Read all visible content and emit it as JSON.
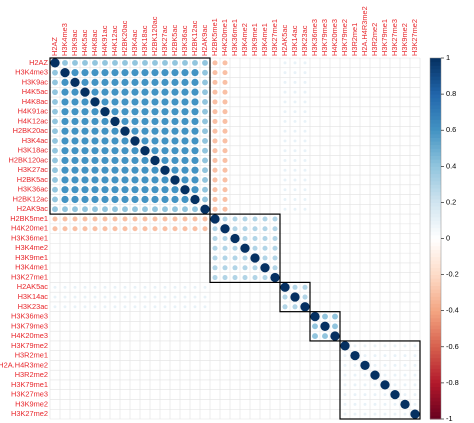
{
  "chart_data": {
    "type": "corrplot",
    "labels": [
      "H2AZ",
      "H3K4me3",
      "H3K9ac",
      "H4K5ac",
      "H4K8ac",
      "H4K91ac",
      "H4K12ac",
      "H2BK20ac",
      "H3K4ac",
      "H3K18ac",
      "H2BK120ac",
      "H3K27ac",
      "H2BK5ac",
      "H3K36ac",
      "H2BK12ac",
      "H2AK9ac",
      "H2BK5me1",
      "H4K20me1",
      "H3K36me1",
      "H3K4me2",
      "H3K9me1",
      "H3K4me1",
      "H3K27me1",
      "H2AK5ac",
      "H3K14ac",
      "H3K23ac",
      "H3K36me3",
      "H3K79me3",
      "H4K20me3",
      "H3K79me2",
      "H3R2me1",
      "H2A.H4R3me2",
      "H3R2me2",
      "H3K79me1",
      "H3K27me3",
      "H3K9me2",
      "H3K27me2"
    ],
    "matrix": [
      [
        1,
        0.4,
        0.4,
        0.4,
        0.4,
        0.4,
        0.4,
        0.4,
        0.4,
        0.4,
        0.4,
        0.4,
        0.4,
        0.4,
        0.4,
        0.4,
        -0.3,
        -0.3,
        0,
        0,
        0,
        0,
        0,
        0.1,
        0.1,
        0.1,
        0,
        0,
        0,
        0,
        0,
        0,
        0,
        0,
        0,
        0,
        0
      ],
      [
        0.4,
        1,
        0.6,
        0.6,
        0.6,
        0.6,
        0.6,
        0.6,
        0.6,
        0.6,
        0.6,
        0.6,
        0.6,
        0.6,
        0.6,
        0.4,
        -0.3,
        -0.3,
        0,
        0,
        0,
        0,
        0,
        0.1,
        0.1,
        0.1,
        0,
        0,
        0,
        0,
        0,
        0,
        0,
        0,
        0,
        0,
        0
      ],
      [
        0.4,
        0.6,
        1,
        0.6,
        0.6,
        0.6,
        0.6,
        0.6,
        0.6,
        0.6,
        0.6,
        0.6,
        0.6,
        0.6,
        0.6,
        0.4,
        -0.3,
        -0.3,
        0,
        0,
        0,
        0,
        0,
        0.1,
        0.1,
        0.1,
        0,
        0,
        0,
        0,
        0,
        0,
        0,
        0,
        0,
        0,
        0
      ],
      [
        0.4,
        0.6,
        0.6,
        1,
        0.6,
        0.6,
        0.6,
        0.6,
        0.6,
        0.6,
        0.6,
        0.6,
        0.6,
        0.6,
        0.6,
        0.4,
        -0.3,
        -0.3,
        0,
        0,
        0,
        0,
        0,
        0.1,
        0.1,
        0.1,
        0,
        0,
        0,
        0,
        0,
        0,
        0,
        0,
        0,
        0,
        0
      ],
      [
        0.4,
        0.6,
        0.6,
        0.6,
        1,
        0.6,
        0.6,
        0.6,
        0.6,
        0.6,
        0.6,
        0.6,
        0.6,
        0.6,
        0.6,
        0.4,
        -0.3,
        -0.3,
        0,
        0,
        0,
        0,
        0,
        0.1,
        0.1,
        0.1,
        0,
        0,
        0,
        0,
        0,
        0,
        0,
        0,
        0,
        0,
        0
      ],
      [
        0.4,
        0.6,
        0.6,
        0.6,
        0.6,
        1,
        0.6,
        0.6,
        0.6,
        0.6,
        0.6,
        0.6,
        0.6,
        0.6,
        0.6,
        0.4,
        -0.3,
        -0.3,
        0,
        0,
        0,
        0,
        0,
        0.1,
        0.1,
        0.1,
        0,
        0,
        0,
        0,
        0,
        0,
        0,
        0,
        0,
        0,
        0
      ],
      [
        0.4,
        0.6,
        0.6,
        0.6,
        0.6,
        0.6,
        1,
        0.6,
        0.6,
        0.6,
        0.6,
        0.6,
        0.6,
        0.6,
        0.6,
        0.4,
        -0.3,
        -0.3,
        0,
        0,
        0,
        0,
        0,
        0.1,
        0.1,
        0.1,
        0,
        0,
        0,
        0,
        0,
        0,
        0,
        0,
        0,
        0,
        0
      ],
      [
        0.4,
        0.6,
        0.6,
        0.6,
        0.6,
        0.6,
        0.6,
        1,
        0.6,
        0.6,
        0.6,
        0.6,
        0.6,
        0.6,
        0.6,
        0.4,
        -0.3,
        -0.3,
        0,
        0,
        0,
        0,
        0,
        0.1,
        0.1,
        0.1,
        0,
        0,
        0,
        0,
        0,
        0,
        0,
        0,
        0,
        0,
        0
      ],
      [
        0.4,
        0.6,
        0.6,
        0.6,
        0.6,
        0.6,
        0.6,
        0.6,
        1,
        0.6,
        0.6,
        0.6,
        0.6,
        0.6,
        0.6,
        0.4,
        -0.3,
        -0.3,
        0,
        0,
        0,
        0,
        0,
        0.1,
        0.1,
        0.1,
        0,
        0,
        0,
        0,
        0,
        0,
        0,
        0,
        0,
        0,
        0
      ],
      [
        0.4,
        0.6,
        0.6,
        0.6,
        0.6,
        0.6,
        0.6,
        0.6,
        0.6,
        1,
        0.6,
        0.6,
        0.6,
        0.6,
        0.6,
        0.4,
        -0.3,
        -0.3,
        0,
        0,
        0,
        0,
        0,
        0.1,
        0.1,
        0.1,
        0,
        0,
        0,
        0,
        0,
        0,
        0,
        0,
        0,
        0,
        0
      ],
      [
        0.4,
        0.6,
        0.6,
        0.6,
        0.6,
        0.6,
        0.6,
        0.6,
        0.6,
        0.6,
        1,
        0.6,
        0.6,
        0.6,
        0.6,
        0.4,
        -0.3,
        -0.3,
        0,
        0,
        0,
        0,
        0,
        0.1,
        0.1,
        0.1,
        0,
        0,
        0,
        0,
        0,
        0,
        0,
        0,
        0,
        0,
        0
      ],
      [
        0.4,
        0.6,
        0.6,
        0.6,
        0.6,
        0.6,
        0.6,
        0.6,
        0.6,
        0.6,
        0.6,
        1,
        0.6,
        0.6,
        0.6,
        0.4,
        -0.3,
        -0.3,
        0,
        0,
        0,
        0,
        0,
        0.1,
        0.1,
        0.1,
        0,
        0,
        0,
        0,
        0,
        0,
        0,
        0,
        0,
        0,
        0
      ],
      [
        0.4,
        0.6,
        0.6,
        0.6,
        0.6,
        0.6,
        0.6,
        0.6,
        0.6,
        0.6,
        0.6,
        0.6,
        1,
        0.6,
        0.6,
        0.4,
        -0.3,
        -0.3,
        0,
        0,
        0,
        0,
        0,
        0.1,
        0.1,
        0.1,
        0,
        0,
        0,
        0,
        0,
        0,
        0,
        0,
        0,
        0,
        0
      ],
      [
        0.4,
        0.6,
        0.6,
        0.6,
        0.6,
        0.6,
        0.6,
        0.6,
        0.6,
        0.6,
        0.6,
        0.6,
        0.6,
        1,
        0.6,
        0.4,
        -0.3,
        -0.3,
        0,
        0,
        0,
        0,
        0,
        0.1,
        0.1,
        0.1,
        0,
        0,
        0,
        0,
        0,
        0,
        0,
        0,
        0,
        0,
        0
      ],
      [
        0.4,
        0.6,
        0.6,
        0.6,
        0.6,
        0.6,
        0.6,
        0.6,
        0.6,
        0.6,
        0.6,
        0.6,
        0.6,
        0.6,
        1,
        0.4,
        -0.3,
        -0.3,
        0,
        0,
        0,
        0,
        0,
        0.1,
        0.1,
        0.1,
        0,
        0,
        0,
        0,
        0,
        0,
        0,
        0,
        0,
        0,
        0
      ],
      [
        0.4,
        0.4,
        0.4,
        0.4,
        0.4,
        0.4,
        0.4,
        0.4,
        0.4,
        0.4,
        0.4,
        0.4,
        0.4,
        0.4,
        0.4,
        1,
        -0.3,
        -0.3,
        0,
        0,
        0,
        0,
        0,
        0.1,
        0.1,
        0.1,
        0,
        0,
        0,
        0,
        0,
        0,
        0,
        0,
        0,
        0,
        0
      ],
      [
        -0.3,
        -0.3,
        -0.3,
        -0.3,
        -0.3,
        -0.3,
        -0.3,
        -0.3,
        -0.3,
        -0.3,
        -0.3,
        -0.3,
        -0.3,
        -0.3,
        -0.3,
        -0.3,
        1,
        0.3,
        0.3,
        0.3,
        0.3,
        0.3,
        0.3,
        0,
        0,
        0,
        0,
        0,
        0,
        0,
        0,
        0,
        0,
        0,
        0,
        0,
        0
      ],
      [
        -0.3,
        -0.3,
        -0.3,
        -0.3,
        -0.3,
        -0.3,
        -0.3,
        -0.3,
        -0.3,
        -0.3,
        -0.3,
        -0.3,
        -0.3,
        -0.3,
        -0.3,
        -0.3,
        0.3,
        1,
        0.3,
        0.3,
        0.3,
        0.3,
        0.3,
        0,
        0,
        0,
        0,
        0,
        0,
        0,
        0,
        0,
        0,
        0,
        0,
        0,
        0
      ],
      [
        0,
        0,
        0,
        0,
        0,
        0,
        0,
        0,
        0,
        0,
        0,
        0,
        0,
        0,
        0,
        0,
        0.3,
        0.3,
        1,
        0.3,
        0.3,
        0.3,
        0.3,
        0,
        0,
        0,
        0,
        0,
        0,
        0,
        0,
        0,
        0,
        0,
        0,
        0,
        0
      ],
      [
        0,
        0,
        0,
        0,
        0,
        0,
        0,
        0,
        0,
        0,
        0,
        0,
        0,
        0,
        0,
        0,
        0.3,
        0.3,
        0.3,
        1,
        0.3,
        0.3,
        0.3,
        0,
        0,
        0,
        0,
        0,
        0,
        0,
        0,
        0,
        0,
        0,
        0,
        0,
        0
      ],
      [
        0,
        0,
        0,
        0,
        0,
        0,
        0,
        0,
        0,
        0,
        0,
        0,
        0,
        0,
        0,
        0,
        0.3,
        0.3,
        0.3,
        0.3,
        1,
        0.3,
        0.3,
        0,
        0,
        0,
        0,
        0,
        0,
        0,
        0,
        0,
        0,
        0,
        0,
        0,
        0
      ],
      [
        0,
        0,
        0,
        0,
        0,
        0,
        0,
        0,
        0,
        0,
        0,
        0,
        0,
        0,
        0,
        0,
        0.3,
        0.3,
        0.3,
        0.3,
        0.3,
        1,
        0.3,
        0,
        0,
        0,
        0,
        0,
        0,
        0,
        0,
        0,
        0,
        0,
        0,
        0,
        0
      ],
      [
        0,
        0,
        0,
        0,
        0,
        0,
        0,
        0,
        0,
        0,
        0,
        0,
        0,
        0,
        0,
        0,
        0.3,
        0.3,
        0.3,
        0.3,
        0.3,
        0.3,
        1,
        0,
        0,
        0,
        0,
        0,
        0,
        0,
        0,
        0,
        0,
        0,
        0,
        0,
        0
      ],
      [
        0.1,
        0.1,
        0.1,
        0.1,
        0.1,
        0.1,
        0.1,
        0.1,
        0.1,
        0.1,
        0.1,
        0.1,
        0.1,
        0.1,
        0.1,
        0.1,
        0,
        0,
        0,
        0,
        0,
        0,
        0,
        1,
        0.3,
        0.3,
        0,
        0,
        0,
        0,
        0,
        0,
        0,
        0,
        0,
        0,
        0
      ],
      [
        0.1,
        0.1,
        0.1,
        0.1,
        0.1,
        0.1,
        0.1,
        0.1,
        0.1,
        0.1,
        0.1,
        0.1,
        0.1,
        0.1,
        0.1,
        0.1,
        0,
        0,
        0,
        0,
        0,
        0,
        0,
        0.3,
        1,
        0.3,
        0,
        0,
        0,
        0,
        0,
        0,
        0,
        0,
        0,
        0,
        0
      ],
      [
        0.1,
        0.1,
        0.1,
        0.1,
        0.1,
        0.1,
        0.1,
        0.1,
        0.1,
        0.1,
        0.1,
        0.1,
        0.1,
        0.1,
        0.1,
        0.1,
        0,
        0,
        0,
        0,
        0,
        0,
        0,
        0.3,
        0.3,
        1,
        0,
        0,
        0,
        0,
        0,
        0,
        0,
        0,
        0,
        0,
        0
      ],
      [
        0,
        0,
        0,
        0,
        0,
        0,
        0,
        0,
        0,
        0,
        0,
        0,
        0,
        0,
        0,
        0,
        0,
        0,
        0,
        0,
        0,
        0,
        0,
        0,
        0,
        0,
        1,
        0.4,
        0.4,
        0,
        0,
        0,
        0,
        0,
        0,
        0,
        0
      ],
      [
        0,
        0,
        0,
        0,
        0,
        0,
        0,
        0,
        0,
        0,
        0,
        0,
        0,
        0,
        0,
        0,
        0,
        0,
        0,
        0,
        0,
        0,
        0,
        0,
        0,
        0,
        0.4,
        1,
        0.4,
        0,
        0,
        0,
        0,
        0,
        0,
        0,
        0
      ],
      [
        0,
        0,
        0,
        0,
        0,
        0,
        0,
        0,
        0,
        0,
        0,
        0,
        0,
        0,
        0,
        0,
        0,
        0,
        0,
        0,
        0,
        0,
        0,
        0,
        0,
        0,
        0.4,
        0.4,
        1,
        0,
        0,
        0,
        0,
        0,
        0,
        0,
        0
      ],
      [
        0,
        0,
        0,
        0,
        0,
        0,
        0,
        0,
        0,
        0,
        0,
        0,
        0,
        0,
        0,
        0,
        0,
        0,
        0,
        0,
        0,
        0,
        0,
        0,
        0,
        0,
        0,
        0,
        0,
        1,
        0.1,
        0.1,
        0.1,
        0.1,
        0.1,
        0.1,
        0.1
      ],
      [
        0,
        0,
        0,
        0,
        0,
        0,
        0,
        0,
        0,
        0,
        0,
        0,
        0,
        0,
        0,
        0,
        0,
        0,
        0,
        0,
        0,
        0,
        0,
        0,
        0,
        0,
        0,
        0,
        0,
        0.1,
        1,
        0.1,
        0.1,
        0.1,
        0.1,
        0.1,
        0.1
      ],
      [
        0,
        0,
        0,
        0,
        0,
        0,
        0,
        0,
        0,
        0,
        0,
        0,
        0,
        0,
        0,
        0,
        0,
        0,
        0,
        0,
        0,
        0,
        0,
        0,
        0,
        0,
        0,
        0,
        0,
        0.1,
        0.1,
        1,
        0.1,
        0.1,
        0.1,
        0.1,
        0.1
      ],
      [
        0,
        0,
        0,
        0,
        0,
        0,
        0,
        0,
        0,
        0,
        0,
        0,
        0,
        0,
        0,
        0,
        0,
        0,
        0,
        0,
        0,
        0,
        0,
        0,
        0,
        0,
        0,
        0,
        0,
        0.1,
        0.1,
        0.1,
        1,
        0.1,
        0.1,
        0.1,
        0.1
      ],
      [
        0,
        0,
        0,
        0,
        0,
        0,
        0,
        0,
        0,
        0,
        0,
        0,
        0,
        0,
        0,
        0,
        0,
        0,
        0,
        0,
        0,
        0,
        0,
        0,
        0,
        0,
        0,
        0,
        0,
        0.1,
        0.1,
        0.1,
        0.1,
        1,
        0.1,
        0.1,
        0.1
      ],
      [
        0,
        0,
        0,
        0,
        0,
        0,
        0,
        0,
        0,
        0,
        0,
        0,
        0,
        0,
        0,
        0,
        0,
        0,
        0,
        0,
        0,
        0,
        0,
        0,
        0,
        0,
        0,
        0,
        0,
        0.1,
        0.1,
        0.1,
        0.1,
        0.1,
        1,
        0.1,
        0.1
      ],
      [
        0,
        0,
        0,
        0,
        0,
        0,
        0,
        0,
        0,
        0,
        0,
        0,
        0,
        0,
        0,
        0,
        0,
        0,
        0,
        0,
        0,
        0,
        0,
        0,
        0,
        0,
        0,
        0,
        0,
        0.1,
        0.1,
        0.1,
        0.1,
        0.1,
        0.1,
        1,
        0.1
      ],
      [
        0,
        0,
        0,
        0,
        0,
        0,
        0,
        0,
        0,
        0,
        0,
        0,
        0,
        0,
        0,
        0,
        0,
        0,
        0,
        0,
        0,
        0,
        0,
        0,
        0,
        0,
        0,
        0,
        0,
        0.1,
        0.1,
        0.1,
        0.1,
        0.1,
        0.1,
        0.1,
        1
      ]
    ],
    "cluster_sizes": [
      16,
      7,
      3,
      3,
      8
    ],
    "colors": [
      "#67001F",
      "#B2182B",
      "#D6604D",
      "#F4A582",
      "#FDDBC7",
      "#FFFFFF",
      "#D1E5F0",
      "#92C5DE",
      "#4393C3",
      "#2166AC",
      "#053061"
    ],
    "label_color": "#e8262b",
    "ylim": [
      -1,
      1
    ],
    "yticks": [
      -1,
      -0.8,
      -0.6,
      -0.4,
      -0.2,
      0,
      0.2,
      0.4,
      0.6,
      0.8,
      1
    ]
  }
}
